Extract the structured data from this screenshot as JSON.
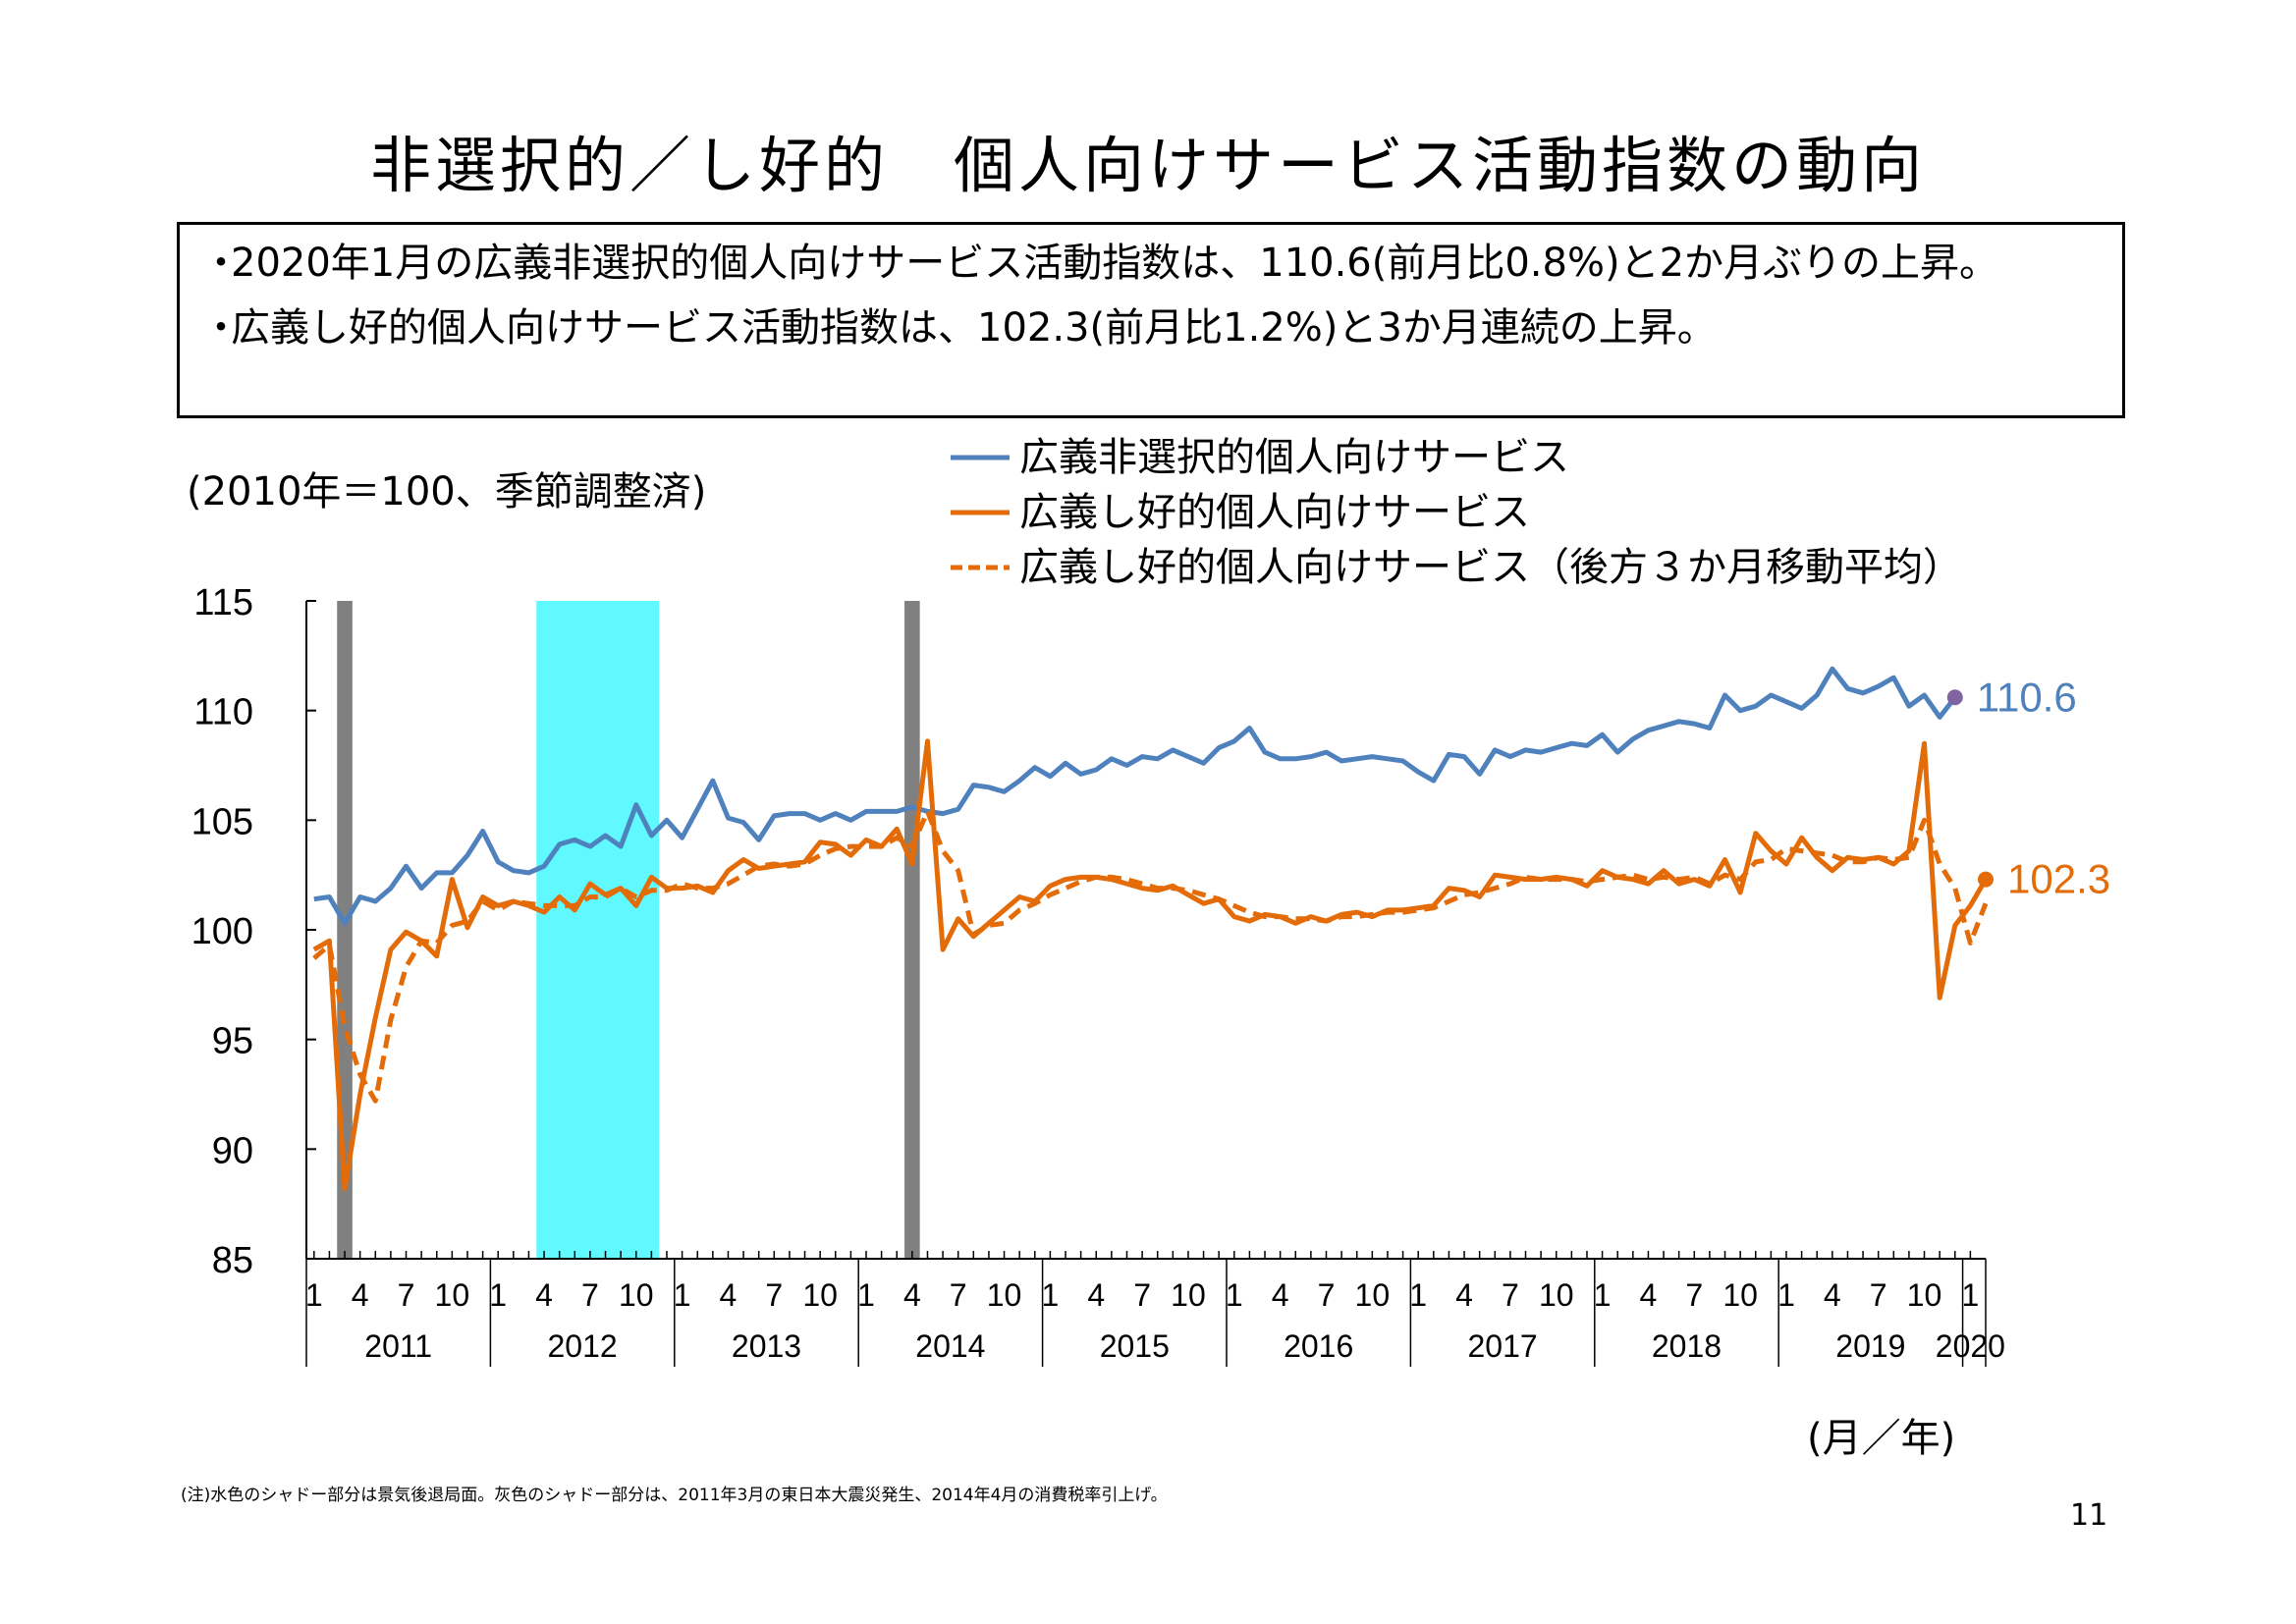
{
  "title": "非選択的／し好的　個人向けサービス活動指数の動向",
  "summary": [
    "2020年1月の広義非選択的個人向けサービス活動指数は、110.6(前月比0.8%)と2か月ぶりの上昇。",
    "広義し好的個人向けサービス活動指数は、102.3(前月比1.2%)と3か月連続の上昇。"
  ],
  "bullet": "・",
  "unit_label": "(2010年＝100、季節調整済)",
  "x_unit_label": "(月／年)",
  "note": "(注)水色のシャドー部分は景気後退局面。灰色のシャドー部分は、2011年3月の東日本大震災発生、2014年4月の消費税率引上げ。",
  "page_number": "11",
  "colors": {
    "blue": "#4f81bd",
    "orange": "#e36c09",
    "cyan": "#5ff9ff",
    "gray": "#808080"
  },
  "chart_data": {
    "type": "line",
    "x_start": "2011-01",
    "x_end": "2020-01",
    "ylim": [
      85,
      115
    ],
    "y_ticks": [
      85,
      90,
      95,
      100,
      105,
      110,
      115
    ],
    "month_tick_labels": [
      "1",
      "4",
      "7",
      "10"
    ],
    "year_labels": [
      "2011",
      "2012",
      "2013",
      "2014",
      "2015",
      "2016",
      "2017",
      "2018",
      "2019",
      "2020"
    ],
    "shaded_regions": [
      {
        "from": "2012-04",
        "to": "2012-11",
        "color": "cyan"
      },
      {
        "from": "2011-03",
        "to": "2011-03",
        "color": "gray"
      },
      {
        "from": "2014-04",
        "to": "2014-04",
        "color": "gray"
      }
    ],
    "series": [
      {
        "name": "広義非選択的個人向けサービス",
        "color": "blue",
        "style": "solid",
        "values": [
          101.4,
          101.5,
          100.3,
          101.5,
          101.3,
          101.9,
          102.9,
          101.9,
          102.6,
          102.6,
          103.4,
          104.5,
          103.1,
          102.7,
          102.6,
          102.9,
          103.9,
          104.1,
          103.8,
          104.3,
          103.8,
          105.7,
          104.3,
          105.0,
          104.2,
          105.5,
          106.8,
          105.1,
          104.9,
          104.1,
          105.2,
          105.3,
          105.3,
          105.0,
          105.3,
          105.0,
          105.4,
          105.4,
          105.4,
          105.6,
          105.4,
          105.3,
          105.5,
          106.6,
          106.5,
          106.3,
          106.8,
          107.4,
          107.0,
          107.6,
          107.1,
          107.3,
          107.8,
          107.5,
          107.9,
          107.8,
          108.2,
          107.9,
          107.6,
          108.3,
          108.6,
          109.2,
          108.1,
          107.8,
          107.8,
          107.9,
          108.1,
          107.7,
          107.8,
          107.9,
          107.8,
          107.7,
          107.2,
          106.8,
          108.0,
          107.9,
          107.1,
          108.2,
          107.9,
          108.2,
          108.1,
          108.3,
          108.5,
          108.4,
          108.9,
          108.1,
          108.7,
          109.1,
          109.3,
          109.5,
          109.4,
          109.2,
          110.7,
          110.0,
          110.2,
          110.7,
          110.4,
          110.1,
          110.7,
          111.9,
          111.0,
          110.8,
          111.1,
          111.5,
          110.2,
          110.7,
          109.7,
          110.6
        ],
        "end_label": "110.6"
      },
      {
        "name": "広義し好的個人向けサービス",
        "color": "orange",
        "style": "solid",
        "values": [
          99.1,
          99.5,
          88.2,
          92.5,
          96.0,
          99.1,
          99.9,
          99.5,
          98.8,
          102.3,
          100.1,
          101.5,
          101.1,
          101.3,
          101.1,
          100.8,
          101.5,
          100.9,
          102.1,
          101.6,
          101.9,
          101.1,
          102.4,
          101.9,
          101.9,
          102.0,
          101.7,
          102.7,
          103.2,
          102.8,
          102.9,
          103.0,
          103.1,
          104.0,
          103.9,
          103.4,
          104.1,
          103.8,
          104.6,
          103.0,
          108.6,
          99.1,
          100.5,
          99.7,
          100.3,
          100.9,
          101.5,
          101.3,
          102.0,
          102.3,
          102.4,
          102.4,
          102.3,
          102.1,
          101.9,
          101.8,
          102.0,
          101.6,
          101.2,
          101.4,
          100.6,
          100.4,
          100.7,
          100.6,
          100.3,
          100.6,
          100.4,
          100.7,
          100.8,
          100.6,
          100.9,
          100.9,
          101.0,
          101.1,
          101.9,
          101.8,
          101.5,
          102.5,
          102.4,
          102.3,
          102.3,
          102.4,
          102.3,
          102.0,
          102.7,
          102.4,
          102.3,
          102.1,
          102.7,
          102.1,
          102.3,
          102.0,
          103.2,
          101.7,
          104.4,
          103.6,
          103.0,
          104.2,
          103.3,
          102.7,
          103.3,
          103.2,
          103.3,
          103.0,
          103.6,
          108.5,
          96.9,
          100.2,
          101.1,
          102.3
        ],
        "end_label": "102.3"
      },
      {
        "name": "広義し好的個人向けサービス（後方３か月移動平均）",
        "color": "orange",
        "style": "dashed",
        "values": [
          98.7,
          99.3,
          95.6,
          93.4,
          92.2,
          95.9,
          98.3,
          99.5,
          99.4,
          100.2,
          100.4,
          101.3,
          100.9,
          101.3,
          101.2,
          101.1,
          101.1,
          101.1,
          101.5,
          101.5,
          101.9,
          101.5,
          101.8,
          101.8,
          102.1,
          101.9,
          101.9,
          102.1,
          102.5,
          102.9,
          103.0,
          102.9,
          103.0,
          103.4,
          103.7,
          103.8,
          103.8,
          103.8,
          104.2,
          103.8,
          105.4,
          103.6,
          102.7,
          99.8,
          100.2,
          100.3,
          100.9,
          101.2,
          101.6,
          101.9,
          102.2,
          102.4,
          102.4,
          102.3,
          102.1,
          101.9,
          101.9,
          101.8,
          101.6,
          101.4,
          101.1,
          100.8,
          100.6,
          100.6,
          100.5,
          100.5,
          100.4,
          100.6,
          100.6,
          100.7,
          100.8,
          100.8,
          100.9,
          101.0,
          101.3,
          101.6,
          101.7,
          101.9,
          102.1,
          102.4,
          102.3,
          102.3,
          102.3,
          102.2,
          102.3,
          102.4,
          102.5,
          102.3,
          102.4,
          102.3,
          102.4,
          102.1,
          102.5,
          102.3,
          103.1,
          103.2,
          103.7,
          103.6,
          103.5,
          103.4,
          103.1,
          103.1,
          103.3,
          103.2,
          103.3,
          105.0,
          103.0,
          101.9,
          99.4,
          101.2
        ]
      }
    ]
  }
}
